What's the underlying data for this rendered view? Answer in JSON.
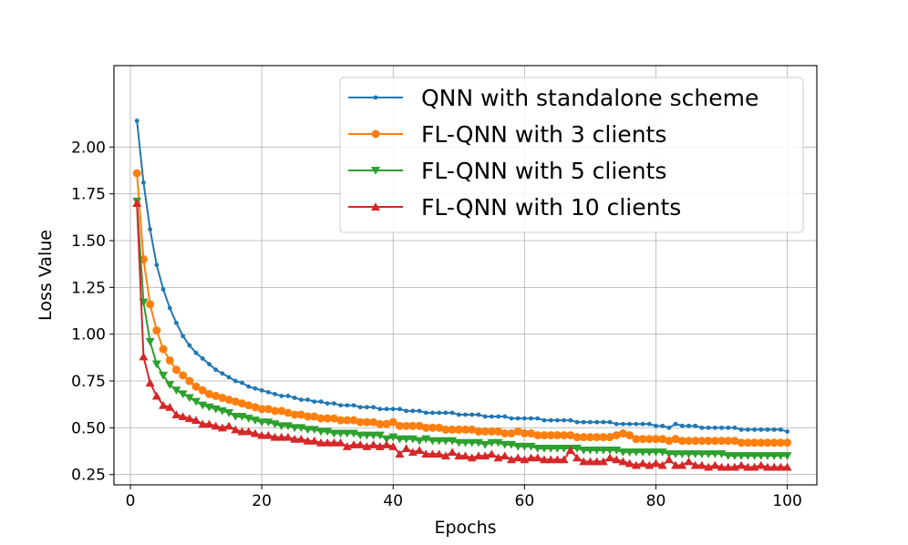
{
  "chart_data": {
    "type": "line",
    "xlabel": "Epochs",
    "ylabel": "Loss Value",
    "xlim": [
      -2.5,
      104.5
    ],
    "ylim": [
      0.195,
      2.435
    ],
    "xticks": [
      0,
      20,
      40,
      60,
      80,
      100
    ],
    "yticks": [
      0.25,
      0.5,
      0.75,
      1.0,
      1.25,
      1.5,
      1.75,
      2.0
    ],
    "ytick_labels": [
      "0.25",
      "0.50",
      "0.75",
      "1.00",
      "1.25",
      "1.50",
      "1.75",
      "2.00"
    ],
    "grid": true,
    "legend_position": "top-right",
    "x": [
      1,
      2,
      3,
      4,
      5,
      6,
      7,
      8,
      9,
      10,
      11,
      12,
      13,
      14,
      15,
      16,
      17,
      18,
      19,
      20,
      21,
      22,
      23,
      24,
      25,
      26,
      27,
      28,
      29,
      30,
      31,
      32,
      33,
      34,
      35,
      36,
      37,
      38,
      39,
      40,
      41,
      42,
      43,
      44,
      45,
      46,
      47,
      48,
      49,
      50,
      51,
      52,
      53,
      54,
      55,
      56,
      57,
      58,
      59,
      60,
      61,
      62,
      63,
      64,
      65,
      66,
      67,
      68,
      69,
      70,
      71,
      72,
      73,
      74,
      75,
      76,
      77,
      78,
      79,
      80,
      81,
      82,
      83,
      84,
      85,
      86,
      87,
      88,
      89,
      90,
      91,
      92,
      93,
      94,
      95,
      96,
      97,
      98,
      99,
      100
    ],
    "series": [
      {
        "name": "QNN with standalone scheme",
        "color": "#1f77b4",
        "marker": "point",
        "values": [
          2.14,
          1.81,
          1.56,
          1.37,
          1.24,
          1.14,
          1.06,
          0.99,
          0.94,
          0.9,
          0.87,
          0.84,
          0.81,
          0.79,
          0.77,
          0.75,
          0.74,
          0.72,
          0.71,
          0.7,
          0.69,
          0.68,
          0.67,
          0.67,
          0.66,
          0.65,
          0.65,
          0.64,
          0.64,
          0.63,
          0.63,
          0.62,
          0.62,
          0.62,
          0.61,
          0.61,
          0.61,
          0.6,
          0.6,
          0.6,
          0.6,
          0.59,
          0.59,
          0.59,
          0.58,
          0.58,
          0.58,
          0.58,
          0.58,
          0.57,
          0.57,
          0.57,
          0.57,
          0.56,
          0.56,
          0.56,
          0.56,
          0.55,
          0.55,
          0.55,
          0.55,
          0.55,
          0.54,
          0.54,
          0.54,
          0.54,
          0.54,
          0.53,
          0.53,
          0.53,
          0.53,
          0.53,
          0.53,
          0.52,
          0.52,
          0.52,
          0.52,
          0.52,
          0.52,
          0.51,
          0.51,
          0.5,
          0.52,
          0.51,
          0.51,
          0.51,
          0.5,
          0.5,
          0.5,
          0.5,
          0.5,
          0.5,
          0.49,
          0.49,
          0.49,
          0.49,
          0.49,
          0.49,
          0.49,
          0.48
        ]
      },
      {
        "name": "FL-QNN with 3 clients",
        "color": "#ff7f0e",
        "marker": "circle",
        "values": [
          1.86,
          1.4,
          1.16,
          1.02,
          0.92,
          0.86,
          0.81,
          0.78,
          0.75,
          0.72,
          0.7,
          0.68,
          0.67,
          0.66,
          0.65,
          0.64,
          0.63,
          0.62,
          0.61,
          0.6,
          0.6,
          0.59,
          0.59,
          0.58,
          0.57,
          0.57,
          0.56,
          0.56,
          0.55,
          0.55,
          0.55,
          0.54,
          0.54,
          0.54,
          0.53,
          0.53,
          0.53,
          0.52,
          0.52,
          0.53,
          0.51,
          0.51,
          0.51,
          0.51,
          0.5,
          0.5,
          0.5,
          0.49,
          0.49,
          0.49,
          0.49,
          0.49,
          0.48,
          0.48,
          0.48,
          0.48,
          0.47,
          0.47,
          0.48,
          0.47,
          0.47,
          0.46,
          0.46,
          0.46,
          0.46,
          0.46,
          0.46,
          0.45,
          0.45,
          0.45,
          0.45,
          0.45,
          0.45,
          0.46,
          0.47,
          0.46,
          0.44,
          0.44,
          0.44,
          0.44,
          0.44,
          0.43,
          0.44,
          0.43,
          0.43,
          0.43,
          0.43,
          0.43,
          0.43,
          0.43,
          0.43,
          0.43,
          0.42,
          0.42,
          0.42,
          0.42,
          0.42,
          0.42,
          0.42,
          0.42
        ]
      },
      {
        "name": "FL-QNN with 5 clients",
        "color": "#2ca02c",
        "marker": "triangle-down",
        "values": [
          1.71,
          1.17,
          0.96,
          0.84,
          0.78,
          0.73,
          0.7,
          0.68,
          0.66,
          0.64,
          0.62,
          0.61,
          0.6,
          0.59,
          0.58,
          0.56,
          0.56,
          0.55,
          0.54,
          0.53,
          0.53,
          0.52,
          0.51,
          0.51,
          0.5,
          0.5,
          0.49,
          0.49,
          0.48,
          0.48,
          0.47,
          0.47,
          0.47,
          0.47,
          0.46,
          0.46,
          0.46,
          0.46,
          0.44,
          0.45,
          0.44,
          0.44,
          0.44,
          0.43,
          0.44,
          0.43,
          0.43,
          0.43,
          0.43,
          0.42,
          0.42,
          0.42,
          0.42,
          0.41,
          0.42,
          0.42,
          0.41,
          0.41,
          0.4,
          0.4,
          0.4,
          0.39,
          0.39,
          0.39,
          0.39,
          0.39,
          0.39,
          0.39,
          0.38,
          0.38,
          0.38,
          0.38,
          0.38,
          0.38,
          0.37,
          0.37,
          0.37,
          0.37,
          0.37,
          0.37,
          0.37,
          0.36,
          0.36,
          0.36,
          0.36,
          0.36,
          0.36,
          0.36,
          0.36,
          0.36,
          0.35,
          0.35,
          0.35,
          0.35,
          0.35,
          0.35,
          0.35,
          0.35,
          0.35,
          0.35
        ]
      },
      {
        "name": "FL-QNN with 10 clients",
        "color": "#d62728",
        "marker": "triangle-up",
        "values": [
          1.7,
          0.88,
          0.74,
          0.67,
          0.62,
          0.61,
          0.57,
          0.56,
          0.55,
          0.54,
          0.52,
          0.52,
          0.51,
          0.5,
          0.51,
          0.49,
          0.48,
          0.48,
          0.47,
          0.46,
          0.46,
          0.45,
          0.45,
          0.45,
          0.44,
          0.44,
          0.43,
          0.43,
          0.42,
          0.42,
          0.42,
          0.42,
          0.4,
          0.41,
          0.41,
          0.4,
          0.41,
          0.4,
          0.41,
          0.4,
          0.36,
          0.39,
          0.37,
          0.38,
          0.36,
          0.36,
          0.36,
          0.35,
          0.37,
          0.35,
          0.35,
          0.34,
          0.35,
          0.35,
          0.36,
          0.34,
          0.35,
          0.33,
          0.34,
          0.33,
          0.34,
          0.34,
          0.33,
          0.33,
          0.33,
          0.33,
          0.38,
          0.34,
          0.32,
          0.32,
          0.32,
          0.32,
          0.34,
          0.33,
          0.32,
          0.31,
          0.3,
          0.31,
          0.3,
          0.31,
          0.3,
          0.33,
          0.3,
          0.3,
          0.32,
          0.3,
          0.3,
          0.29,
          0.3,
          0.29,
          0.29,
          0.29,
          0.3,
          0.29,
          0.29,
          0.3,
          0.29,
          0.29,
          0.29,
          0.29
        ]
      }
    ]
  }
}
